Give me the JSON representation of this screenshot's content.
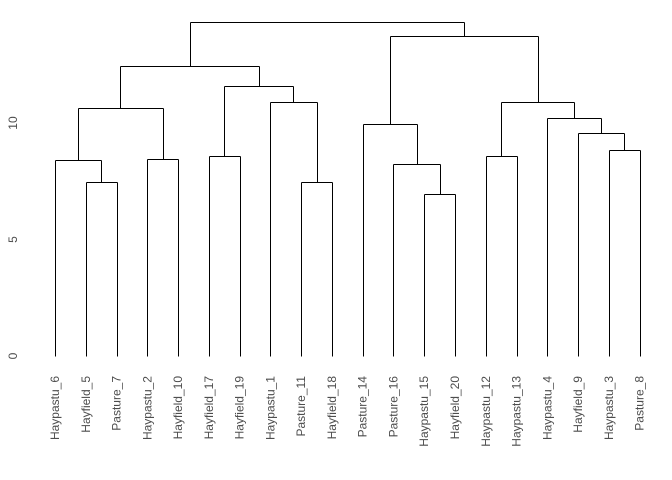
{
  "figure": {
    "background": "#ffffff",
    "description": "R-style hierarchical clustering dendrogram of 20 grassland sites"
  },
  "chart_data": {
    "type": "dendrogram",
    "orientation": "vertical",
    "title": "",
    "xlabel": "",
    "ylabel": "",
    "ylim": [
      0,
      15
    ],
    "yticks": [
      0,
      5,
      10
    ],
    "grid": false,
    "legend": false,
    "line_color": "#000000",
    "label_color": "#4d4d4d",
    "axis_label_color": "#4d4d4d",
    "leaf_order": [
      "Haypastu_6",
      "Hayfield_5",
      "Pasture_7",
      "Haypastu_2",
      "Hayfield_10",
      "Hayfield_17",
      "Hayfield_19",
      "Haypastu_1",
      "Pasture_11",
      "Hayfield_18",
      "Pasture_14",
      "Pasture_16",
      "Haypastu_15",
      "Hayfield_20",
      "Haypastu_12",
      "Haypastu_13",
      "Haypastu_4",
      "Hayfield_9",
      "Haypastu_3",
      "Pasture_8"
    ],
    "tree": {
      "height": 14.35,
      "children": [
        {
          "height": 12.45,
          "children": [
            {
              "height": 10.65,
              "children": [
                {
                  "height": 8.4,
                  "children": [
                    {
                      "label": "Haypastu_6"
                    },
                    {
                      "height": 7.45,
                      "children": [
                        {
                          "label": "Hayfield_5"
                        },
                        {
                          "label": "Pasture_7"
                        }
                      ]
                    }
                  ]
                },
                {
                  "height": 8.45,
                  "children": [
                    {
                      "label": "Haypastu_2"
                    },
                    {
                      "label": "Hayfield_10"
                    }
                  ]
                }
              ]
            },
            {
              "height": 11.6,
              "children": [
                {
                  "height": 8.6,
                  "children": [
                    {
                      "label": "Hayfield_17"
                    },
                    {
                      "label": "Hayfield_19"
                    }
                  ]
                },
                {
                  "height": 10.9,
                  "children": [
                    {
                      "label": "Haypastu_1"
                    },
                    {
                      "height": 7.45,
                      "children": [
                        {
                          "label": "Pasture_11"
                        },
                        {
                          "label": "Hayfield_18"
                        }
                      ]
                    }
                  ]
                }
              ]
            }
          ]
        },
        {
          "height": 13.75,
          "children": [
            {
              "height": 9.95,
              "children": [
                {
                  "label": "Pasture_14"
                },
                {
                  "height": 8.25,
                  "children": [
                    {
                      "label": "Pasture_16"
                    },
                    {
                      "height": 6.95,
                      "children": [
                        {
                          "label": "Haypastu_15"
                        },
                        {
                          "label": "Hayfield_20"
                        }
                      ]
                    }
                  ]
                }
              ]
            },
            {
              "height": 10.9,
              "children": [
                {
                  "height": 8.6,
                  "children": [
                    {
                      "label": "Haypastu_12"
                    },
                    {
                      "label": "Haypastu_13"
                    }
                  ]
                },
                {
                  "height": 10.2,
                  "children": [
                    {
                      "label": "Haypastu_4"
                    },
                    {
                      "height": 9.55,
                      "children": [
                        {
                          "label": "Hayfield_9"
                        },
                        {
                          "height": 8.85,
                          "children": [
                            {
                              "label": "Haypastu_3"
                            },
                            {
                              "label": "Pasture_8"
                            }
                          ]
                        }
                      ]
                    }
                  ]
                }
              ]
            }
          ]
        }
      ]
    }
  }
}
